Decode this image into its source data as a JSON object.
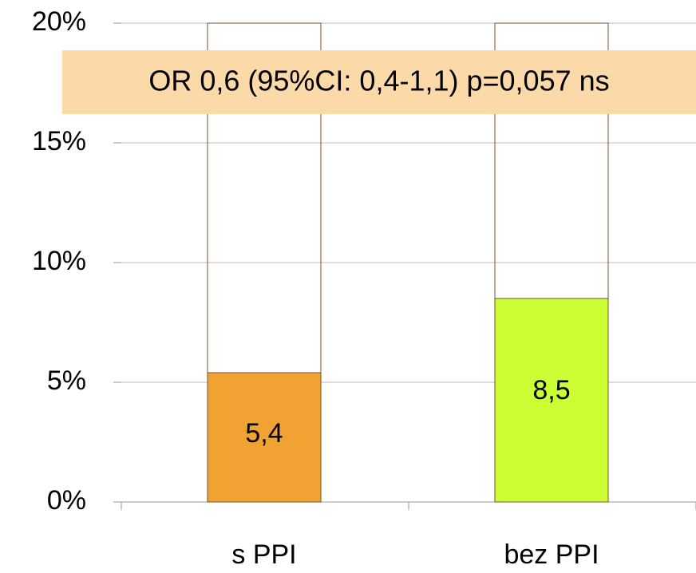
{
  "chart_data": {
    "type": "bar",
    "categories": [
      "s PPI",
      "bez PPI"
    ],
    "values": [
      5.4,
      8.5
    ],
    "value_labels": [
      "5,4",
      "8,5"
    ],
    "colors": [
      "#f0a232",
      "#ccff33"
    ],
    "ylim": [
      0,
      20
    ],
    "yticks": [
      {
        "value": 0,
        "label": "0%"
      },
      {
        "value": 5,
        "label": "5%"
      },
      {
        "value": 10,
        "label": "10%"
      },
      {
        "value": 15,
        "label": "15%"
      },
      {
        "value": 20,
        "label": "20%"
      }
    ],
    "grid": true,
    "annotation": "OR 0,6 (95%CI: 0,4-1,1) p=0,057 ns"
  }
}
